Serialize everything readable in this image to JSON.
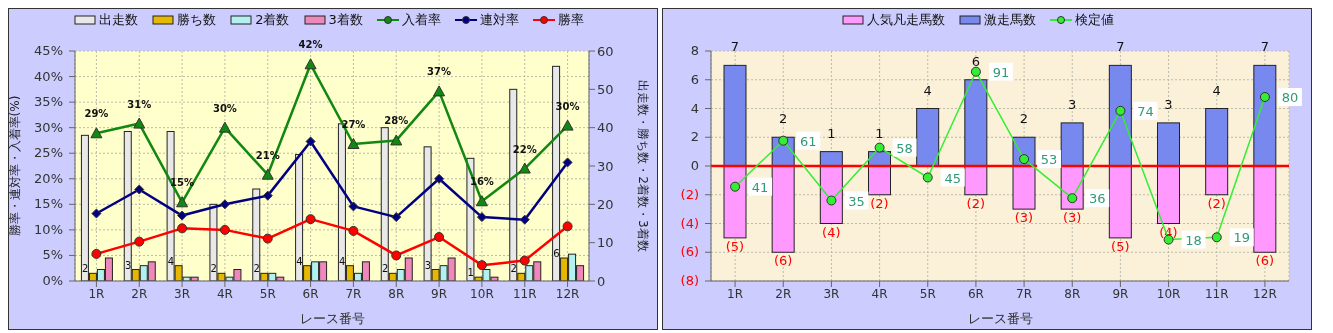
{
  "chart_data": [
    {
      "type": "bar",
      "xlabel": "レース番号",
      "ylabel": "勝率・連対率・入着率(%)",
      "y2label": "出走数・勝ち数・2着数・3着数",
      "categories": [
        "1R",
        "2R",
        "3R",
        "4R",
        "5R",
        "6R",
        "7R",
        "8R",
        "9R",
        "10R",
        "11R",
        "12R"
      ],
      "legend": "top",
      "grid": true,
      "ylim": [
        0,
        45
      ],
      "yticks": [
        {
          "value": 0,
          "label": "0%"
        },
        {
          "value": 5,
          "label": "5%"
        },
        {
          "value": 10,
          "label": "10%"
        },
        {
          "value": 15,
          "label": "15%"
        },
        {
          "value": 20,
          "label": "20%"
        },
        {
          "value": 25,
          "label": "25%"
        },
        {
          "value": 30,
          "label": "30%"
        },
        {
          "value": 35,
          "label": "35%"
        },
        {
          "value": 40,
          "label": "40%"
        },
        {
          "value": 45,
          "label": "45%"
        }
      ],
      "y2lim": [
        0,
        60
      ],
      "y2ticks": [
        0,
        10,
        20,
        30,
        40,
        50,
        60
      ],
      "series": [
        {
          "name": "出走数",
          "type": "bar",
          "axis": "y2",
          "color": "#e8e8e8",
          "values": [
            38,
            39,
            39,
            20,
            24,
            33,
            41,
            40,
            35,
            32,
            50,
            56
          ]
        },
        {
          "name": "勝ち数",
          "type": "bar",
          "axis": "y2",
          "color": "#e6b800",
          "values": [
            2,
            3,
            4,
            2,
            2,
            4,
            4,
            2,
            3,
            1,
            2,
            6
          ],
          "value_labels": [
            "2",
            "3",
            "4",
            "2",
            "2",
            "4",
            "4",
            "2",
            "3",
            "1",
            "2",
            "6"
          ]
        },
        {
          "name": "2着数",
          "type": "bar",
          "axis": "y2",
          "color": "#b3f0f0",
          "values": [
            3,
            4,
            1,
            1,
            2,
            5,
            2,
            3,
            4,
            3,
            4,
            7
          ]
        },
        {
          "name": "3着数",
          "type": "bar",
          "axis": "y2",
          "color": "#ee88bb",
          "values": [
            6,
            5,
            1,
            3,
            1,
            5,
            5,
            6,
            6,
            1,
            5,
            4
          ]
        },
        {
          "name": "入着率",
          "type": "line",
          "axis": "y",
          "color": "#118811",
          "marker": "triangle",
          "values": [
            28.9,
            30.8,
            15.4,
            30.0,
            20.8,
            42.4,
            26.8,
            27.5,
            37.1,
            15.6,
            22.0,
            30.4
          ],
          "value_labels": [
            "29%",
            "31%",
            "15%",
            "30%",
            "21%",
            "42%",
            "27%",
            "28%",
            "37%",
            "16%",
            "22%",
            "30%"
          ]
        },
        {
          "name": "連対率",
          "type": "line",
          "axis": "y",
          "color": "#000080",
          "marker": "diamond",
          "values": [
            13.2,
            17.9,
            12.8,
            15.0,
            16.7,
            27.3,
            14.6,
            12.5,
            20.0,
            12.5,
            12.0,
            23.2
          ]
        },
        {
          "name": "勝率",
          "type": "line",
          "axis": "y",
          "color": "#ff0000",
          "marker": "circle",
          "values": [
            5.3,
            7.7,
            10.3,
            10.0,
            8.3,
            12.1,
            9.8,
            5.0,
            8.6,
            3.1,
            4.0,
            10.7
          ]
        }
      ]
    },
    {
      "type": "bar",
      "xlabel": "レース番号",
      "categories": [
        "1R",
        "2R",
        "3R",
        "4R",
        "5R",
        "6R",
        "7R",
        "8R",
        "9R",
        "10R",
        "11R",
        "12R"
      ],
      "legend": "top",
      "grid": true,
      "stacked": true,
      "ylim": [
        -8,
        8
      ],
      "yticks": [
        {
          "value": -8,
          "label": "(8)"
        },
        {
          "value": -6,
          "label": "(6)"
        },
        {
          "value": -4,
          "label": "(4)"
        },
        {
          "value": -2,
          "label": "(2)"
        },
        0,
        2,
        4,
        6,
        8
      ],
      "y2lim": [
        0,
        100
      ],
      "ref_lines": [
        {
          "axis": "y",
          "value": 0,
          "color": "#ff0000"
        }
      ],
      "series": [
        {
          "name": "人気凡走馬数",
          "type": "bar",
          "axis": "y",
          "color": "#ff99ff",
          "values": [
            -5,
            -6,
            -4,
            -2,
            0,
            -2,
            -3,
            -3,
            -5,
            -4,
            -2,
            -6
          ],
          "value_labels": [
            "(5)",
            "(6)",
            "(4)",
            "(2)",
            null,
            "(2)",
            "(3)",
            "(3)",
            "(5)",
            "(4)",
            "(2)",
            "(6)"
          ]
        },
        {
          "name": "激走馬数",
          "type": "bar",
          "axis": "y",
          "color": "#7788ee",
          "values": [
            7,
            2,
            1,
            1,
            4,
            6,
            2,
            3,
            7,
            3,
            4,
            7
          ],
          "data_labels": true
        },
        {
          "name": "検定値",
          "type": "line",
          "axis": "y2",
          "color": "#33ee33",
          "marker": "circle",
          "values": [
            41,
            61,
            35,
            58,
            45,
            91,
            53,
            36,
            74,
            18,
            19,
            80
          ],
          "data_labels": true
        }
      ]
    }
  ]
}
